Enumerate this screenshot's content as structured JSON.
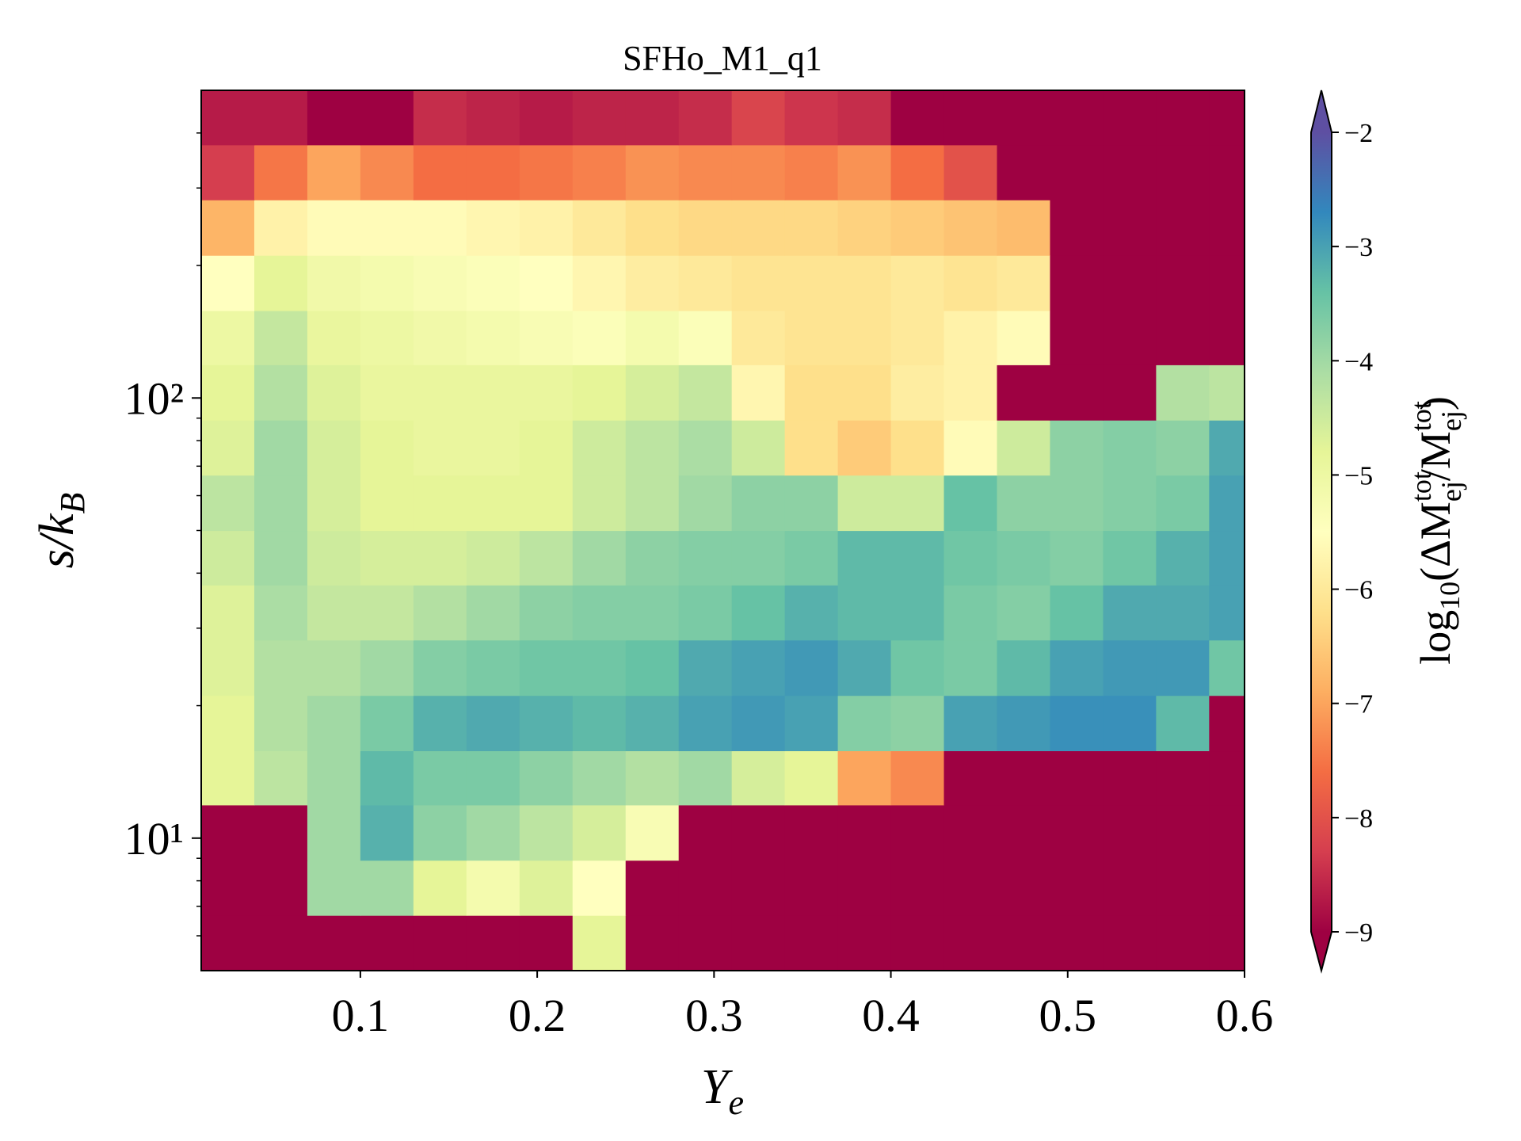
{
  "chart_data": {
    "type": "heatmap",
    "title": "SFHo_M1_q1",
    "xlabel": {
      "main": "Y",
      "sub": "e"
    },
    "ylabel": {
      "main": "s/k",
      "sub": "B"
    },
    "colorbar_label": [
      "log",
      "10",
      "(ΔM",
      "tot",
      "ej",
      "/M",
      "tot",
      "ej",
      ")"
    ],
    "xlim": [
      0.01,
      0.6
    ],
    "xticks": [
      0.1,
      0.2,
      0.3,
      0.4,
      0.5,
      0.6
    ],
    "ylim": [
      5,
      500
    ],
    "yscale": "log",
    "yticks": [
      {
        "value": 10,
        "label": "10¹"
      },
      {
        "value": 100,
        "label": "10²"
      }
    ],
    "yminorticks": [
      6,
      7,
      8,
      9,
      20,
      30,
      40,
      50,
      60,
      70,
      80,
      90,
      200,
      300,
      400
    ],
    "xbins": [
      0.01,
      0.04,
      0.07,
      0.1,
      0.13,
      0.16,
      0.19,
      0.22,
      0.25,
      0.28,
      0.31,
      0.34,
      0.37,
      0.4,
      0.43,
      0.46,
      0.49,
      0.52,
      0.55,
      0.58,
      0.6
    ],
    "ybins": [
      5,
      6.68,
      8.91,
      11.9,
      15.8,
      21.1,
      28.2,
      37.6,
      50,
      66.8,
      89.1,
      119,
      158,
      211,
      282,
      376,
      500
    ],
    "z": [
      [
        -9,
        -9,
        -9,
        -9,
        -9,
        -9,
        -9,
        -4.8,
        -9,
        -9,
        -9,
        -9,
        -9,
        -9,
        -9,
        -9,
        -9,
        -9,
        -9,
        -9
      ],
      [
        -9,
        -9,
        -4,
        -4,
        -4.8,
        -5.2,
        -4.7,
        -5.5,
        -9,
        -9,
        -9,
        -9,
        -9,
        -9,
        -9,
        -9,
        -9,
        -9,
        -9,
        -9
      ],
      [
        -9,
        -9,
        -4,
        -3.2,
        -3.8,
        -4,
        -4.3,
        -4.6,
        -5.3,
        -9,
        -9,
        -9,
        -9,
        -9,
        -9,
        -9,
        -9,
        -9,
        -9,
        -9
      ],
      [
        -4.8,
        -4.3,
        -4,
        -3.3,
        -3.6,
        -3.6,
        -3.8,
        -4,
        -4.2,
        -4,
        -4.6,
        -4.8,
        -7,
        -7.3,
        -9,
        -9,
        -9,
        -9,
        -9,
        -9
      ],
      [
        -4.8,
        -4.2,
        -4,
        -3.6,
        -3.2,
        -3.1,
        -3.2,
        -3.3,
        -3.2,
        -3,
        -2.9,
        -3,
        -3.7,
        -3.8,
        -3,
        -2.9,
        -2.8,
        -2.8,
        -3.3,
        -9
      ],
      [
        -4.7,
        -4.2,
        -4.2,
        -4,
        -3.7,
        -3.6,
        -3.5,
        -3.5,
        -3.4,
        -3.1,
        -3,
        -2.9,
        -3.1,
        -3.5,
        -3.6,
        -3.3,
        -3,
        -2.9,
        -2.9,
        -3.5
      ],
      [
        -4.7,
        -4.1,
        -4.4,
        -4.4,
        -4.2,
        -4,
        -3.8,
        -3.7,
        -3.7,
        -3.6,
        -3.4,
        -3.2,
        -3.3,
        -3.3,
        -3.6,
        -3.7,
        -3.4,
        -3.1,
        -3.1,
        -3
      ],
      [
        -4.5,
        -4,
        -4.5,
        -4.6,
        -4.6,
        -4.5,
        -4.3,
        -4,
        -3.8,
        -3.7,
        -3.7,
        -3.6,
        -3.3,
        -3.3,
        -3.5,
        -3.6,
        -3.7,
        -3.5,
        -3.2,
        -3
      ],
      [
        -4.3,
        -4,
        -4.6,
        -4.8,
        -4.8,
        -4.8,
        -4.8,
        -4.5,
        -4.3,
        -4,
        -3.8,
        -3.8,
        -4.5,
        -4.5,
        -3.4,
        -3.8,
        -3.8,
        -3.7,
        -3.6,
        -3
      ],
      [
        -4.7,
        -4,
        -4.6,
        -4.8,
        -4.9,
        -4.9,
        -4.8,
        -4.5,
        -4.3,
        -4.1,
        -4.5,
        -6.2,
        -6.5,
        -6.2,
        -5.6,
        -4.5,
        -3.8,
        -3.7,
        -3.8,
        -3.1
      ],
      [
        -4.8,
        -4.2,
        -4.7,
        -4.9,
        -4.9,
        -4.9,
        -4.9,
        -4.8,
        -4.6,
        -4.4,
        -5.7,
        -6.2,
        -6.2,
        -5.9,
        -5.8,
        -9,
        -9,
        -9,
        -4.2,
        -4.3
      ],
      [
        -5,
        -4.4,
        -4.9,
        -5,
        -5.1,
        -5.2,
        -5.3,
        -5.4,
        -5.2,
        -5.4,
        -6,
        -6.1,
        -6.1,
        -6,
        -5.8,
        -5.6,
        -9,
        -9,
        -9,
        -9
      ],
      [
        -5.5,
        -4.8,
        -5.1,
        -5.2,
        -5.3,
        -5.4,
        -5.5,
        -5.7,
        -5.9,
        -6,
        -6.1,
        -6.1,
        -6.1,
        -6,
        -6.1,
        -6,
        -9,
        -9,
        -9,
        -9
      ],
      [
        -6.8,
        -5.8,
        -5.6,
        -5.6,
        -5.6,
        -5.7,
        -5.8,
        -6,
        -6.2,
        -6.3,
        -6.3,
        -6.3,
        -6.4,
        -6.5,
        -6.6,
        -6.7,
        -9,
        -9,
        -9,
        -9
      ],
      [
        -8.3,
        -7.5,
        -7,
        -7.3,
        -7.6,
        -7.6,
        -7.5,
        -7.4,
        -7.2,
        -7.3,
        -7.3,
        -7.4,
        -7.2,
        -7.6,
        -8,
        -9,
        -9,
        -9,
        -9,
        -9
      ],
      [
        -8.7,
        -8.7,
        -9,
        -9,
        -8.5,
        -8.6,
        -8.7,
        -8.6,
        -8.6,
        -8.5,
        -8.2,
        -8.4,
        -8.5,
        -9,
        -9,
        -9,
        -9,
        -9,
        -9,
        -9
      ]
    ],
    "clim": [
      -9,
      -2
    ],
    "cticks": [
      {
        "value": -9,
        "label": "−9"
      },
      {
        "value": -8,
        "label": "−8"
      },
      {
        "value": -7,
        "label": "−7"
      },
      {
        "value": -6,
        "label": "−6"
      },
      {
        "value": -5,
        "label": "−5"
      },
      {
        "value": -4,
        "label": "−4"
      },
      {
        "value": -3,
        "label": "−3"
      },
      {
        "value": -2,
        "label": "−2"
      }
    ],
    "colormap": [
      "#9e0142",
      "#d53e4f",
      "#f46d43",
      "#fdae61",
      "#fee08b",
      "#ffffbf",
      "#e6f598",
      "#abdda4",
      "#66c2a5",
      "#3288bd",
      "#5e4fa2"
    ]
  }
}
